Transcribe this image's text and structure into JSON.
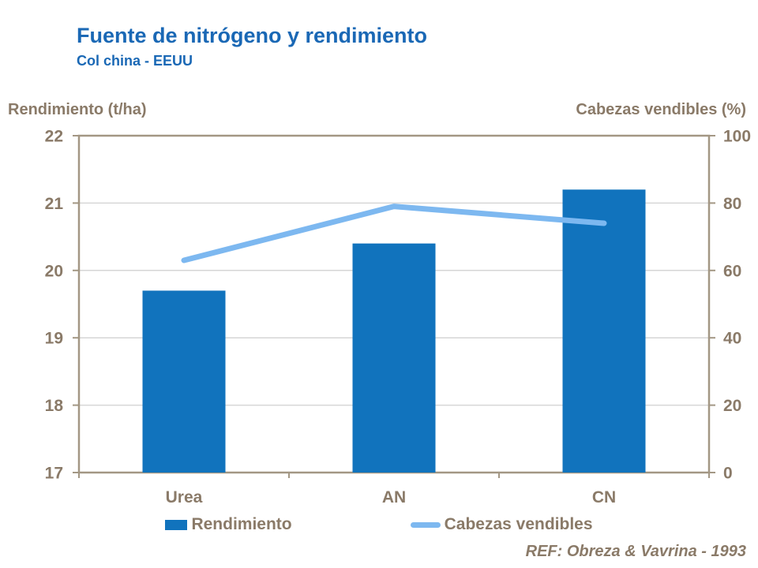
{
  "header": {
    "title": "Fuente de nitrógeno y rendimiento",
    "subtitle": "Col china - EEUU"
  },
  "footer": {
    "reference": "REF: Obreza & Vavrina - 1993"
  },
  "colors": {
    "title_blue": "#1A68B5",
    "bar_blue": "#1173BD",
    "line_blue": "#7DB8F0",
    "text_taupe": "#8A7A68",
    "axis_tan": "#A39784",
    "gridline": "#D6D6D6"
  },
  "chart_data": {
    "type": "bar+line combo",
    "categories": [
      "Urea",
      "AN",
      "CN"
    ],
    "series": [
      {
        "name": "Rendimiento",
        "type": "bar",
        "axis": "left",
        "color": "#1173BD",
        "values": [
          19.7,
          20.4,
          21.2
        ]
      },
      {
        "name": "Cabezas vendibles",
        "type": "line",
        "axis": "right",
        "color": "#7DB8F0",
        "values": [
          63,
          79,
          74
        ]
      }
    ],
    "title": "Fuente de nitrógeno y rendimiento",
    "subtitle": "Col china - EEUU",
    "ylabel_left": "Rendimiento (t/ha)",
    "ylabel_right": "Cabezas vendibles (%)",
    "y_left": {
      "min": 17,
      "max": 22,
      "ticks": [
        17,
        18,
        19,
        20,
        21,
        22
      ]
    },
    "y_right": {
      "min": 0,
      "max": 100,
      "ticks": [
        0,
        20,
        40,
        60,
        80,
        100
      ]
    },
    "grid": "horizontal gridlines at left-axis ticks",
    "legend_position": "bottom"
  }
}
